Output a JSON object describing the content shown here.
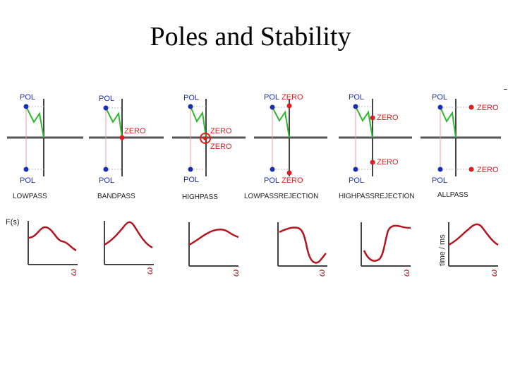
{
  "slide": {
    "title": "Poles and Stability"
  },
  "labels": {
    "pole": "POL",
    "zero": "ZERO",
    "fs": "F(s)",
    "time_axis": "time / ms",
    "omega": "ω"
  },
  "panels": [
    {
      "name": "LOWPASS"
    },
    {
      "name": "BANDPASS"
    },
    {
      "name": "HIGHPASS"
    },
    {
      "name": "LOWPASSREJECTION"
    },
    {
      "name": "HIGHPASSREJECTION"
    },
    {
      "name": "ALLPASS"
    }
  ],
  "colors": {
    "pole": "#1a2fb0",
    "zero": "#dd1e1e",
    "curve": "#b3151e",
    "vector": "#2fb82f",
    "axis": "#555555"
  }
}
